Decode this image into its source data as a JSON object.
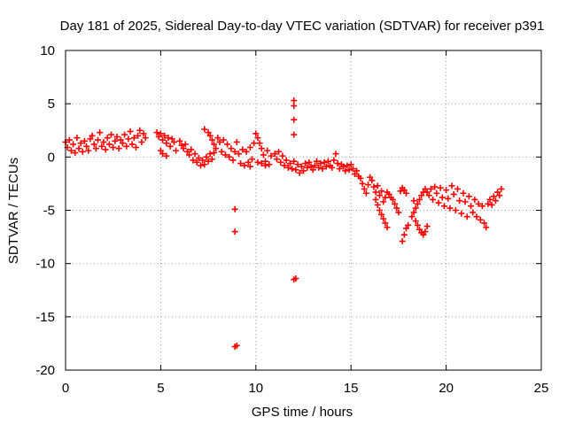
{
  "chart_data": {
    "type": "scatter",
    "title": "Day 181 of 2025, Sidereal Day-to-day VTEC variation (SDTVAR) for receiver p391",
    "xlabel": "GPS time / hours",
    "ylabel": "SDTVAR / TECUs",
    "xlim": [
      0,
      25
    ],
    "ylim": [
      -20,
      10
    ],
    "x_ticks": [
      0,
      5,
      10,
      15,
      20,
      25
    ],
    "y_ticks": [
      10,
      5,
      0,
      -5,
      -10,
      -15,
      -20
    ],
    "x_tick_labels": [
      "0",
      "5",
      "10",
      "15",
      "20",
      "25"
    ],
    "y_tick_labels": [
      "10",
      "5",
      "0",
      "-5",
      "-10",
      "-15",
      "-20"
    ],
    "grid": true,
    "marker": "+",
    "marker_color": "#ff0000",
    "series": [
      {
        "name": "p391",
        "points": [
          [
            0.0,
            1.4
          ],
          [
            0.1,
            0.9
          ],
          [
            0.2,
            1.6
          ],
          [
            0.3,
            0.6
          ],
          [
            0.4,
            1.2
          ],
          [
            0.5,
            0.4
          ],
          [
            0.6,
            1.8
          ],
          [
            0.7,
            0.8
          ],
          [
            0.8,
            1.3
          ],
          [
            0.9,
            0.5
          ],
          [
            1.0,
            1.5
          ],
          [
            1.1,
            1.0
          ],
          [
            1.2,
            0.6
          ],
          [
            1.3,
            1.7
          ],
          [
            1.4,
            2.0
          ],
          [
            1.5,
            1.2
          ],
          [
            1.6,
            0.8
          ],
          [
            1.7,
            1.6
          ],
          [
            1.8,
            2.3
          ],
          [
            1.9,
            1.0
          ],
          [
            2.0,
            1.4
          ],
          [
            2.1,
            0.7
          ],
          [
            2.2,
            1.8
          ],
          [
            2.3,
            1.2
          ],
          [
            2.4,
            2.1
          ],
          [
            2.5,
            0.9
          ],
          [
            2.6,
            1.5
          ],
          [
            2.7,
            1.9
          ],
          [
            2.8,
            0.8
          ],
          [
            2.9,
            1.6
          ],
          [
            3.0,
            1.3
          ],
          [
            3.1,
            2.1
          ],
          [
            3.2,
            1.0
          ],
          [
            3.3,
            1.7
          ],
          [
            3.4,
            2.4
          ],
          [
            3.5,
            1.2
          ],
          [
            3.6,
            1.8
          ],
          [
            3.7,
            0.9
          ],
          [
            3.8,
            2.0
          ],
          [
            3.9,
            2.5
          ],
          [
            4.0,
            1.4
          ],
          [
            4.1,
            2.2
          ],
          [
            4.2,
            1.8
          ],
          [
            4.8,
            2.3
          ],
          [
            4.9,
            1.9
          ],
          [
            5.0,
            2.2
          ],
          [
            5.1,
            1.6
          ],
          [
            5.2,
            2.0
          ],
          [
            5.3,
            1.3
          ],
          [
            5.4,
            1.8
          ],
          [
            5.5,
            1.0
          ],
          [
            5.6,
            1.7
          ],
          [
            5.7,
            1.4
          ],
          [
            5.8,
            0.6
          ],
          [
            5.0,
            0.6
          ],
          [
            5.1,
            0.3
          ],
          [
            5.3,
            0.1
          ],
          [
            6.0,
            1.5
          ],
          [
            6.1,
            1.1
          ],
          [
            6.2,
            0.8
          ],
          [
            6.3,
            1.2
          ],
          [
            6.4,
            0.5
          ],
          [
            6.5,
            0.2
          ],
          [
            6.6,
            0.7
          ],
          [
            6.7,
            -0.3
          ],
          [
            6.8,
            0.3
          ],
          [
            6.9,
            -0.5
          ],
          [
            7.0,
            -0.1
          ],
          [
            7.1,
            -0.8
          ],
          [
            7.2,
            -0.3
          ],
          [
            7.3,
            -0.7
          ],
          [
            7.4,
            0.0
          ],
          [
            7.5,
            -0.4
          ],
          [
            7.6,
            0.3
          ],
          [
            7.7,
            -0.2
          ],
          [
            7.8,
            0.4
          ],
          [
            7.3,
            2.6
          ],
          [
            7.5,
            2.3
          ],
          [
            7.6,
            2.0
          ],
          [
            7.7,
            1.6
          ],
          [
            7.8,
            1.2
          ],
          [
            7.9,
            0.8
          ],
          [
            8.0,
            1.8
          ],
          [
            8.1,
            1.4
          ],
          [
            8.2,
            0.5
          ],
          [
            8.3,
            1.6
          ],
          [
            8.4,
            0.2
          ],
          [
            8.5,
            1.2
          ],
          [
            8.6,
            0.0
          ],
          [
            8.7,
            0.8
          ],
          [
            8.8,
            -0.3
          ],
          [
            8.9,
            0.5
          ],
          [
            9.0,
            1.4
          ],
          [
            9.1,
            0.3
          ],
          [
            9.2,
            -0.6
          ],
          [
            9.3,
            0.7
          ],
          [
            9.4,
            -0.8
          ],
          [
            9.5,
            0.5
          ],
          [
            9.6,
            -0.5
          ],
          [
            9.7,
            0.9
          ],
          [
            9.8,
            -0.2
          ],
          [
            9.9,
            1.3
          ],
          [
            10.0,
            2.2
          ],
          [
            10.1,
            1.8
          ],
          [
            10.2,
            1.3
          ],
          [
            10.3,
            0.8
          ],
          [
            10.4,
            0.2
          ],
          [
            10.5,
            -0.4
          ],
          [
            10.6,
            0.6
          ],
          [
            10.7,
            -0.7
          ],
          [
            10.8,
            0.1
          ],
          [
            10.1,
            -0.5
          ],
          [
            10.3,
            -0.6
          ],
          [
            10.5,
            -0.8
          ],
          [
            9.7,
            -0.9
          ],
          [
            11.0,
            0.3
          ],
          [
            11.1,
            -0.2
          ],
          [
            11.2,
            0.5
          ],
          [
            11.3,
            -0.5
          ],
          [
            11.4,
            0.1
          ],
          [
            11.5,
            -0.8
          ],
          [
            11.6,
            -0.3
          ],
          [
            11.7,
            -1.0
          ],
          [
            11.8,
            -0.6
          ],
          [
            11.9,
            -1.1
          ],
          [
            12.0,
            -0.4
          ],
          [
            12.1,
            -1.2
          ],
          [
            12.2,
            -0.7
          ],
          [
            12.3,
            -1.5
          ],
          [
            12.4,
            -0.9
          ],
          [
            12.5,
            -1.3
          ],
          [
            12.6,
            -0.6
          ],
          [
            12.7,
            -1.0
          ],
          [
            12.8,
            -0.5
          ],
          [
            12.9,
            -0.9
          ],
          [
            13.0,
            -1.2
          ],
          [
            13.1,
            -0.8
          ],
          [
            13.2,
            -0.4
          ],
          [
            13.3,
            -1.0
          ],
          [
            13.4,
            -0.6
          ],
          [
            13.5,
            -1.1
          ],
          [
            13.6,
            -0.5
          ],
          [
            13.7,
            -0.9
          ],
          [
            13.8,
            -0.4
          ],
          [
            13.9,
            -0.8
          ],
          [
            14.0,
            -1.0
          ],
          [
            14.1,
            -0.3
          ],
          [
            14.2,
            0.3
          ],
          [
            14.3,
            -0.6
          ],
          [
            14.4,
            -1.1
          ],
          [
            14.5,
            -0.7
          ],
          [
            14.6,
            -0.9
          ],
          [
            14.7,
            -1.3
          ],
          [
            14.8,
            -0.8
          ],
          [
            14.9,
            -1.2
          ],
          [
            15.0,
            -0.7
          ],
          [
            15.1,
            -1.1
          ],
          [
            15.2,
            -1.6
          ],
          [
            15.3,
            -1.3
          ],
          [
            15.4,
            -1.8
          ],
          [
            15.5,
            -2.0
          ],
          [
            15.6,
            -2.5
          ],
          [
            15.7,
            -3.0
          ],
          [
            15.8,
            -3.4
          ],
          [
            15.9,
            -2.6
          ],
          [
            16.0,
            -1.9
          ],
          [
            16.1,
            -2.2
          ],
          [
            16.2,
            -2.8
          ],
          [
            16.3,
            -3.3
          ],
          [
            16.4,
            -2.7
          ],
          [
            16.5,
            -3.6
          ],
          [
            16.6,
            -3.2
          ],
          [
            16.7,
            -4.2
          ],
          [
            16.8,
            -3.8
          ],
          [
            16.9,
            -3.3
          ],
          [
            16.3,
            -4.0
          ],
          [
            16.4,
            -4.5
          ],
          [
            16.5,
            -5.0
          ],
          [
            16.6,
            -5.4
          ],
          [
            16.7,
            -5.8
          ],
          [
            16.8,
            -6.2
          ],
          [
            16.9,
            -6.6
          ],
          [
            17.0,
            -3.5
          ],
          [
            17.1,
            -3.8
          ],
          [
            17.2,
            -4.0
          ],
          [
            17.3,
            -4.4
          ],
          [
            17.4,
            -4.8
          ],
          [
            17.5,
            -5.2
          ],
          [
            17.6,
            -3.2
          ],
          [
            17.7,
            -2.9
          ],
          [
            17.8,
            -3.1
          ],
          [
            17.9,
            -3.4
          ],
          [
            17.7,
            -7.9
          ],
          [
            17.8,
            -7.3
          ],
          [
            17.9,
            -6.7
          ],
          [
            18.0,
            -6.4
          ],
          [
            18.2,
            -5.6
          ],
          [
            18.3,
            -5.2
          ],
          [
            18.4,
            -4.8
          ],
          [
            18.5,
            -4.4
          ],
          [
            18.6,
            -4.0
          ],
          [
            18.7,
            -3.6
          ],
          [
            18.8,
            -3.3
          ],
          [
            18.9,
            -3.0
          ],
          [
            18.4,
            -6.0
          ],
          [
            18.5,
            -6.4
          ],
          [
            18.6,
            -6.8
          ],
          [
            18.7,
            -7.1
          ],
          [
            18.8,
            -7.3
          ],
          [
            18.9,
            -7.0
          ],
          [
            19.0,
            -6.5
          ],
          [
            18.3,
            -4.1
          ],
          [
            19.0,
            -3.3
          ],
          [
            19.1,
            -3.6
          ],
          [
            19.2,
            -3.0
          ],
          [
            19.3,
            -4.0
          ],
          [
            19.4,
            -2.8
          ],
          [
            19.5,
            -3.4
          ],
          [
            19.6,
            -4.3
          ],
          [
            19.7,
            -2.9
          ],
          [
            19.8,
            -3.8
          ],
          [
            19.9,
            -4.6
          ],
          [
            20.0,
            -3.1
          ],
          [
            20.1,
            -3.9
          ],
          [
            20.2,
            -4.8
          ],
          [
            20.3,
            -2.7
          ],
          [
            20.4,
            -3.5
          ],
          [
            20.5,
            -5.0
          ],
          [
            20.6,
            -3.0
          ],
          [
            20.7,
            -4.1
          ],
          [
            20.8,
            -5.3
          ],
          [
            20.9,
            -3.4
          ],
          [
            21.0,
            -4.2
          ],
          [
            21.1,
            -5.6
          ],
          [
            21.2,
            -3.7
          ],
          [
            21.3,
            -4.6
          ],
          [
            21.4,
            -5.2
          ],
          [
            21.5,
            -4.0
          ],
          [
            21.6,
            -5.6
          ],
          [
            21.7,
            -4.4
          ],
          [
            21.8,
            -5.9
          ],
          [
            21.9,
            -4.6
          ],
          [
            22.0,
            -6.2
          ],
          [
            22.1,
            -6.6
          ],
          [
            22.2,
            -4.4
          ],
          [
            22.3,
            -4.0
          ],
          [
            22.4,
            -4.5
          ],
          [
            22.5,
            -3.7
          ],
          [
            22.6,
            -4.1
          ],
          [
            22.7,
            -3.3
          ],
          [
            22.8,
            -3.6
          ],
          [
            22.9,
            -3.0
          ],
          [
            8.9,
            -4.9
          ],
          [
            8.9,
            -7.0
          ],
          [
            8.9,
            -17.8
          ],
          [
            9.0,
            -17.7
          ],
          [
            12.0,
            5.3
          ],
          [
            12.0,
            4.8
          ],
          [
            12.0,
            3.5
          ],
          [
            12.0,
            2.1
          ],
          [
            12.0,
            -11.5
          ],
          [
            12.1,
            -11.4
          ]
        ]
      }
    ]
  }
}
